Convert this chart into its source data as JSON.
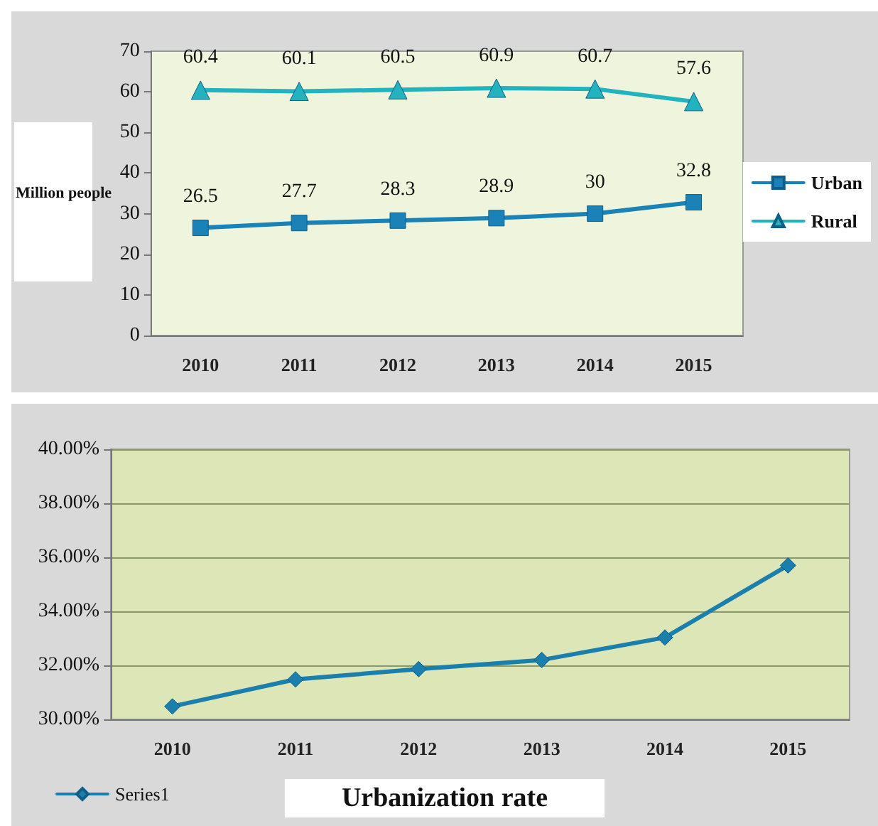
{
  "chart_data": [
    {
      "type": "line",
      "ylabel": "Million people",
      "categories": [
        "2010",
        "2011",
        "2012",
        "2013",
        "2014",
        "2015"
      ],
      "series": [
        {
          "name": "Urban",
          "color": "#1b82b8",
          "marker": "square",
          "values": [
            26.5,
            27.7,
            28.3,
            28.9,
            30,
            32.8
          ]
        },
        {
          "name": "Rural",
          "color": "#22b3be",
          "marker": "triangle",
          "values": [
            60.4,
            60.1,
            60.5,
            60.9,
            60.7,
            57.6
          ]
        }
      ],
      "ylim": [
        0,
        70
      ],
      "yticks": [
        0,
        10,
        20,
        30,
        40,
        50,
        60,
        70
      ],
      "grid": false,
      "legend": "right",
      "data_labels": true
    },
    {
      "type": "line",
      "title": "Urbanization rate",
      "categories": [
        "2010",
        "2011",
        "2012",
        "2013",
        "2014",
        "2015"
      ],
      "series": [
        {
          "name": "Series1",
          "color": "#1a7fad",
          "marker": "diamond",
          "values": [
            30.48,
            31.48,
            31.86,
            32.2,
            33.03,
            35.7
          ]
        }
      ],
      "ylim": [
        30,
        40
      ],
      "yticks": [
        {
          "value": 30,
          "label": "30.00%"
        },
        {
          "value": 32,
          "label": "32.00%"
        },
        {
          "value": 34,
          "label": "34.00%"
        },
        {
          "value": 36,
          "label": "36.00%"
        },
        {
          "value": 38,
          "label": "38.00%"
        },
        {
          "value": 40,
          "label": "40.00%"
        }
      ],
      "grid": "y",
      "legend": "bottom left"
    }
  ]
}
